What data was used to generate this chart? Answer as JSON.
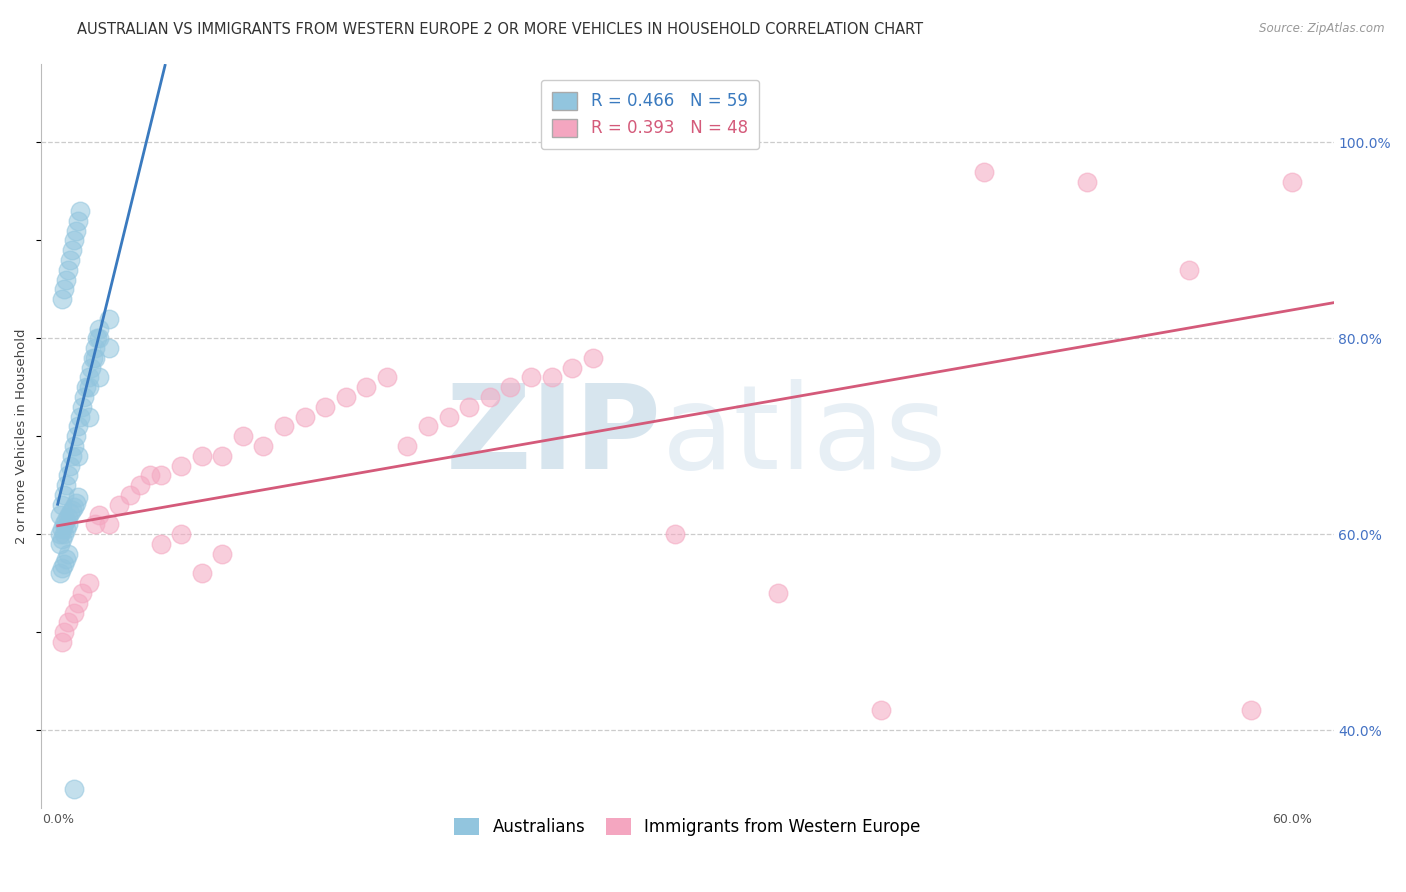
{
  "title": "AUSTRALIAN VS IMMIGRANTS FROM WESTERN EUROPE 2 OR MORE VEHICLES IN HOUSEHOLD CORRELATION CHART",
  "source": "Source: ZipAtlas.com",
  "ylabel": "2 or more Vehicles in Household",
  "R_blue": 0.466,
  "N_blue": 59,
  "R_pink": 0.393,
  "N_pink": 48,
  "color_blue": "#92c5de",
  "color_pink": "#f4a6c0",
  "line_color_blue": "#3a7abf",
  "line_color_pink": "#d45a7a",
  "xlim_data": 0.62,
  "ylim_lo": 0.32,
  "ylim_hi": 1.08,
  "yticks_right": [
    0.4,
    0.6,
    0.8,
    1.0
  ],
  "ytick_labels_right": [
    "40.0%",
    "60.0%",
    "80.0%",
    "100.0%"
  ],
  "xticks": [
    0.0,
    0.1,
    0.2,
    0.3,
    0.4,
    0.5,
    0.6
  ],
  "xtick_labels": [
    "0.0%",
    "",
    "",
    "",
    "",
    "",
    "60.0%"
  ],
  "blue_x": [
    0.001,
    0.002,
    0.003,
    0.004,
    0.005,
    0.006,
    0.007,
    0.008,
    0.009,
    0.01,
    0.011,
    0.012,
    0.013,
    0.014,
    0.015,
    0.016,
    0.017,
    0.018,
    0.019,
    0.02,
    0.002,
    0.003,
    0.004,
    0.005,
    0.006,
    0.007,
    0.008,
    0.009,
    0.01,
    0.011,
    0.001,
    0.002,
    0.003,
    0.004,
    0.005,
    0.006,
    0.007,
    0.008,
    0.009,
    0.01,
    0.001,
    0.002,
    0.003,
    0.004,
    0.005,
    0.015,
    0.018,
    0.02,
    0.025,
    0.001,
    0.002,
    0.003,
    0.004,
    0.005,
    0.01,
    0.015,
    0.02,
    0.025,
    0.008
  ],
  "blue_y": [
    0.62,
    0.63,
    0.64,
    0.65,
    0.66,
    0.67,
    0.68,
    0.69,
    0.7,
    0.71,
    0.72,
    0.73,
    0.74,
    0.75,
    0.76,
    0.77,
    0.78,
    0.79,
    0.8,
    0.81,
    0.84,
    0.85,
    0.86,
    0.87,
    0.88,
    0.89,
    0.9,
    0.91,
    0.92,
    0.93,
    0.6,
    0.605,
    0.61,
    0.615,
    0.618,
    0.622,
    0.625,
    0.628,
    0.632,
    0.638,
    0.56,
    0.565,
    0.57,
    0.575,
    0.58,
    0.75,
    0.78,
    0.8,
    0.82,
    0.59,
    0.595,
    0.6,
    0.605,
    0.61,
    0.68,
    0.72,
    0.76,
    0.79,
    0.34
  ],
  "pink_x": [
    0.002,
    0.003,
    0.005,
    0.008,
    0.01,
    0.012,
    0.015,
    0.018,
    0.02,
    0.025,
    0.03,
    0.035,
    0.04,
    0.045,
    0.05,
    0.06,
    0.07,
    0.08,
    0.09,
    0.1,
    0.11,
    0.12,
    0.13,
    0.14,
    0.15,
    0.16,
    0.17,
    0.18,
    0.19,
    0.2,
    0.21,
    0.22,
    0.23,
    0.24,
    0.25,
    0.26,
    0.05,
    0.06,
    0.07,
    0.08,
    0.3,
    0.35,
    0.4,
    0.45,
    0.5,
    0.55,
    0.58,
    0.6
  ],
  "pink_y": [
    0.49,
    0.5,
    0.51,
    0.52,
    0.53,
    0.54,
    0.55,
    0.61,
    0.62,
    0.61,
    0.63,
    0.64,
    0.65,
    0.66,
    0.66,
    0.67,
    0.68,
    0.68,
    0.7,
    0.69,
    0.71,
    0.72,
    0.73,
    0.74,
    0.75,
    0.76,
    0.69,
    0.71,
    0.72,
    0.73,
    0.74,
    0.75,
    0.76,
    0.76,
    0.77,
    0.78,
    0.59,
    0.6,
    0.56,
    0.58,
    0.6,
    0.54,
    0.42,
    0.97,
    0.96,
    0.87,
    0.42,
    0.96
  ],
  "title_fontsize": 10.5,
  "axis_label_fontsize": 9.5,
  "tick_label_fontsize": 9,
  "legend_fontsize": 12
}
